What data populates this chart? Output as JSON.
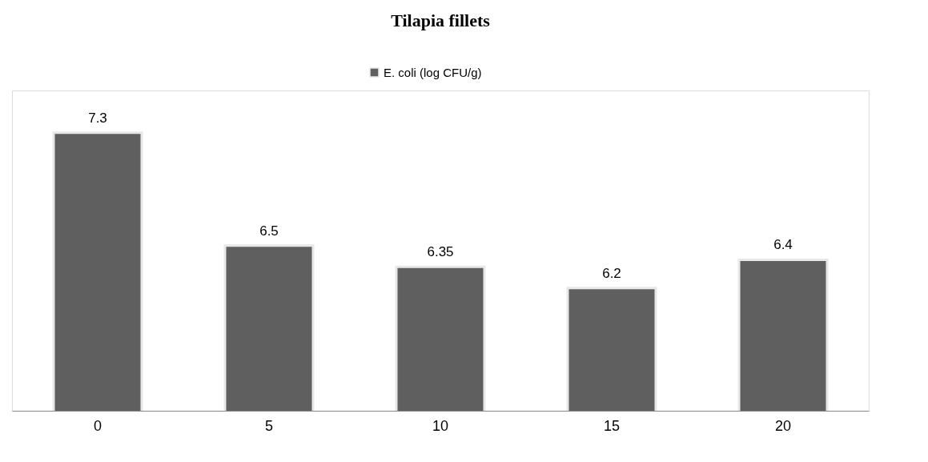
{
  "chart_data": {
    "type": "bar",
    "title": "Tilapia fillets",
    "categories": [
      "0",
      "5",
      "10",
      "15",
      "20"
    ],
    "series": [
      {
        "name": "E. coli (log CFU/g)",
        "color": "#5f5f5f",
        "values": [
          7.3,
          6.5,
          6.35,
          6.2,
          6.4
        ]
      }
    ],
    "ylim": [
      5.33,
      7.6
    ],
    "data_labels": true,
    "legend": "top",
    "grid": false,
    "tick_labels": "x"
  }
}
